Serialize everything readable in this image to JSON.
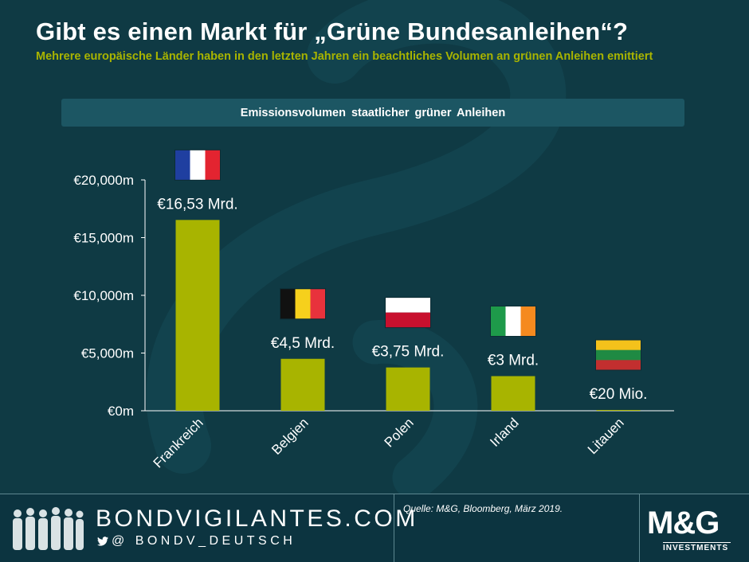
{
  "title": "Gibt es einen Markt für „Grüne Bundesanleihen“?",
  "subtitle": "Mehrere europäische Länder haben in den letzten Jahren ein beachtliches Volumen an grünen Anleihen emittiert",
  "chart_data": {
    "type": "bar",
    "title": "Emissionsvolumen staatlicher grüner Anleihen",
    "categories": [
      "Frankreich",
      "Belgien",
      "Polen",
      "Irland",
      "Litauen"
    ],
    "values": [
      16530,
      4500,
      3750,
      3000,
      20
    ],
    "value_labels": [
      "€16,53 Mrd.",
      "€4,5 Mrd.",
      "€3,75 Mrd.",
      "€3 Mrd.",
      "€20 Mio."
    ],
    "flag_icons": [
      "france-flag-icon",
      "belgium-flag-icon",
      "poland-flag-icon",
      "ireland-flag-icon",
      "lithuania-flag-icon"
    ],
    "y_ticks": [
      0,
      5000,
      10000,
      15000,
      20000
    ],
    "y_tick_labels": [
      "€0m",
      "€5,000m",
      "€10,000m",
      "€15,000m",
      "€20,000m"
    ],
    "ylim": [
      0,
      20000
    ],
    "xlabel": "",
    "ylabel": "",
    "unit": "€m",
    "bar_color": "#a8b400",
    "grid": false,
    "legend": "none"
  },
  "footer": {
    "brand": "BONDVIGILANTES.COM",
    "handle": "@ BONDV_DEUTSCH",
    "source": "Quelle: M&G, Bloomberg, März 2019.",
    "logo_main": "M&G",
    "logo_sub": "INVESTMENTS"
  },
  "colors": {
    "background": "#0f3a44",
    "accent": "#a8b400",
    "banner": "#1c5663"
  }
}
